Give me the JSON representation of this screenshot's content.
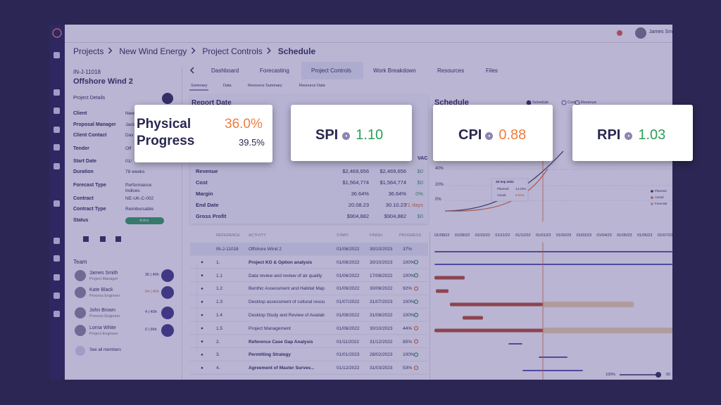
{
  "topbar": {
    "user": "James Smi"
  },
  "breadcrumb": [
    "Projects",
    "New Wind Energy",
    "Project Controls",
    "Schedule"
  ],
  "project": {
    "id": "IN-J-11018",
    "name": "Offshore Wind 2",
    "details_label": "Project Details",
    "fields": [
      {
        "label": "Client",
        "value": "New"
      },
      {
        "label": "Proposal Manager",
        "value": "Jack"
      },
      {
        "label": "Client Contact",
        "value": "Dav"
      },
      {
        "label": "Tender",
        "value": "Off"
      },
      {
        "label": "Start Date",
        "value": "01/"
      },
      {
        "label": "Duration",
        "value": "78 weeks"
      },
      {
        "label": "Forecast Type",
        "value": "Performance Indices"
      },
      {
        "label": "Contract",
        "value": "NE-UK-C-002"
      },
      {
        "label": "Contract Type",
        "value": "Reimbursable"
      },
      {
        "label": "Status",
        "value": "Active"
      }
    ]
  },
  "team": {
    "title": "Team",
    "members": [
      {
        "name": "James Smith",
        "role": "Project Manager",
        "hours": "36 | 40h"
      },
      {
        "name": "Kate Black",
        "role": "Process Engineer",
        "hours": "64 | 40h"
      },
      {
        "name": "John Brown",
        "role": "Process Engineer",
        "hours": "4 | 40h"
      },
      {
        "name": "Lorna White",
        "role": "Project Engineer",
        "hours": "0 | 96h"
      }
    ],
    "see_all": "See all members"
  },
  "tabs": [
    "Dashboard",
    "Forecasting",
    "Project Controls",
    "Work Breakdown",
    "Resources",
    "Files"
  ],
  "subtabs": [
    "Summary",
    "Data",
    "Resource Summary",
    "Resource Data"
  ],
  "finance": {
    "report_label": "Report Date",
    "vac_header": "VAC",
    "rows": [
      {
        "label": "Revenue",
        "cells": [
          "$2,469,656",
          "$2,469,656",
          "$0"
        ]
      },
      {
        "label": "Cost",
        "cells": [
          "$1,564,774",
          "$1,564,774",
          "$0"
        ]
      },
      {
        "label": "Margin",
        "cells": [
          "36.64%",
          "36.64%",
          "0%"
        ]
      },
      {
        "label": "End Date",
        "cells": [
          "20.08.23",
          "30.10.23",
          "71 days"
        ]
      },
      {
        "label": "Gross Profit",
        "cells": [
          "$904,882",
          "$904,882",
          "$0"
        ]
      }
    ]
  },
  "schedule": {
    "title": "Schedule",
    "options": [
      "Schedule",
      "Cost",
      "Revenue"
    ],
    "y_labels": [
      "40%",
      "20%",
      "0%"
    ],
    "tooltip": {
      "date": "26 Sep 2022",
      "rows": [
        {
          "label": "Planned",
          "value": "14.23%"
        },
        {
          "label": "Actual",
          "value": "9.53%"
        }
      ]
    },
    "legend": [
      "Planned",
      "Actual",
      "Forecast"
    ]
  },
  "activities": {
    "headers": [
      "REFERENCE",
      "ACTIVITY",
      "START",
      "FINISH",
      "PROGRESS"
    ],
    "rows": [
      [
        "IN-J-11018",
        "Offshore Wind 2",
        "01/06/2022",
        "30/10/2023",
        "37%"
      ],
      [
        "1.",
        "Project KO & Option analysis",
        "01/06/2022",
        "30/10/2023",
        "100%"
      ],
      [
        "1.1",
        "Data review and review of air quality",
        "01/06/2022",
        "17/08/2022",
        "100%"
      ],
      [
        "1.2",
        "Benthic Assessment and Habitat Map",
        "01/06/2022",
        "30/06/2022",
        "92%"
      ],
      [
        "1.3",
        "Desktop assessment of cultural resou",
        "01/07/2022",
        "31/07/2023",
        "100%"
      ],
      [
        "1.4",
        "Desktop Study and Review of Availab",
        "01/08/2022",
        "31/08/2022",
        "100%"
      ],
      [
        "1.5",
        "Project Management",
        "01/06/2022",
        "30/10/2023",
        "44%"
      ],
      [
        "2.",
        "Reference Case Gap Analysis",
        "01/11/2022",
        "31/12/2022",
        "85%"
      ],
      [
        "3.",
        "Permitting Strategy",
        "01/01/2023",
        "28/02/2023",
        "100%"
      ],
      [
        "4.",
        "Agreement of Master Survev...",
        "01/12/2022",
        "31/03/2023",
        "53%"
      ]
    ]
  },
  "gantt": {
    "dates": [
      "01/08/22",
      "01/09/22",
      "01/10/22",
      "01/11/22",
      "01/12/22",
      "01/01/23",
      "01/02/23",
      "01/03/23",
      "01/04/23",
      "01/05/23",
      "01/06/23",
      "01/07/23",
      "01/08/23",
      "01/09/23"
    ],
    "zoom": "100%",
    "zoom_end": "50"
  },
  "cards": [
    {
      "title": "Physical Progress",
      "value": "36.0%",
      "secondary": "39.5%"
    },
    {
      "title": "SPI",
      "value": "1.10"
    },
    {
      "title": "CPI",
      "value": "0.88"
    },
    {
      "title": "RPI",
      "value": "1.03"
    }
  ]
}
